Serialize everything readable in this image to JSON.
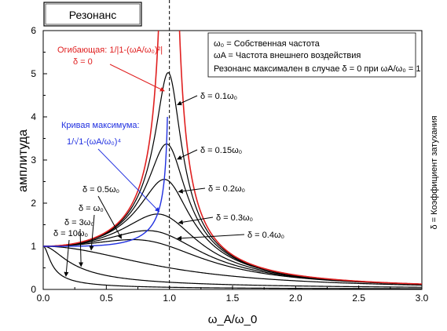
{
  "title": "Резонанс",
  "chart_data": {
    "type": "line",
    "xlabel": "ω_A/ω_0",
    "ylabel": "амплитуда",
    "right_label": "δ = Коэффициент затухания",
    "xlim": [
      0.0,
      3.0
    ],
    "ylim": [
      0,
      6
    ],
    "x_ticks": [
      "0.0",
      "0.5",
      "1.0",
      "1.5",
      "2.0",
      "2.5",
      "3.0"
    ],
    "y_ticks": [
      "0",
      "1",
      "2",
      "3",
      "4",
      "5",
      "6"
    ],
    "vline_x": 1.0,
    "legend": {
      "line1": "ω₀ = Собственная частота",
      "line2": "ωA = Частота внешнего воздействия",
      "line3": "Резонанс максимален в случае  δ = 0 при ωA/ω₀ = 1"
    },
    "envelope": {
      "label_line1": "Огибающая: 1/|1-(ωA/ω₀)²|",
      "label_line2": "δ = 0",
      "color": "#e02020"
    },
    "max_curve": {
      "label_line1": "Кривая максимума:",
      "label_line2": "1/√1-(ωA/ω₀)⁴",
      "color": "#2030e0"
    },
    "series": [
      {
        "label": "δ = 0.1ω₀",
        "delta": 0.1,
        "color": "#000000"
      },
      {
        "label": "δ = 0.15ω₀",
        "delta": 0.15,
        "color": "#000000"
      },
      {
        "label": "δ = 0.2ω₀",
        "delta": 0.2,
        "color": "#000000"
      },
      {
        "label": "δ = 0.3ω₀",
        "delta": 0.3,
        "color": "#000000"
      },
      {
        "label": "δ = 0.4ω₀",
        "delta": 0.4,
        "color": "#000000"
      },
      {
        "label": "δ = 0.5ω₀",
        "delta": 0.5,
        "color": "#000000"
      },
      {
        "label": "δ = ω₀",
        "delta": 1.0,
        "color": "#000000"
      },
      {
        "label": "δ = 3ω₀",
        "delta": 3.0,
        "color": "#000000"
      },
      {
        "label": "δ = 10ω₀",
        "delta": 10.0,
        "color": "#000000"
      }
    ]
  }
}
